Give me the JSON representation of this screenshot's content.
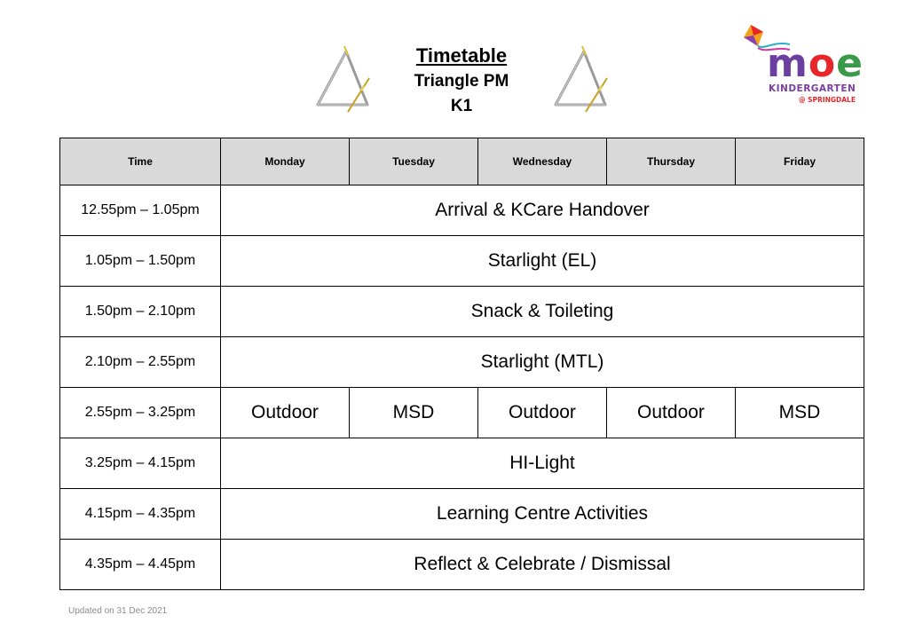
{
  "header": {
    "title": "Timetable",
    "class_name": "Triangle PM",
    "level": "K1"
  },
  "logo": {
    "brand": [
      "m",
      "o",
      "e"
    ],
    "line1": "KINDERGARTEN",
    "line2": "@ SPRINGDALE"
  },
  "icons": [
    "triangle-instrument-icon",
    "kite-icon"
  ],
  "table": {
    "columns": [
      "Time",
      "Monday",
      "Tuesday",
      "Wednesday",
      "Thursday",
      "Friday"
    ],
    "rows": [
      {
        "time": "12.55pm – 1.05pm",
        "activity": "Arrival & KCare Handover"
      },
      {
        "time": "1.05pm – 1.50pm",
        "activity": "Starlight (EL)"
      },
      {
        "time": "1.50pm – 2.10pm",
        "activity": "Snack & Toileting"
      },
      {
        "time": "2.10pm – 2.55pm",
        "activity": "Starlight (MTL)"
      },
      {
        "time": "2.55pm – 3.25pm",
        "days": [
          "Outdoor",
          "MSD",
          "Outdoor",
          "Outdoor",
          "MSD"
        ]
      },
      {
        "time": "3.25pm – 4.15pm",
        "activity": "HI-Light"
      },
      {
        "time": "4.15pm – 4.35pm",
        "activity": "Learning Centre Activities"
      },
      {
        "time": "4.35pm – 4.45pm",
        "activity": "Reflect & Celebrate / Dismissal"
      }
    ]
  },
  "footer": {
    "updated": "Updated on 31 Dec 2021"
  },
  "colors": {
    "header_bg": "#d9d9d9",
    "border": "#000000",
    "footer_text": "#8c8c8c"
  }
}
